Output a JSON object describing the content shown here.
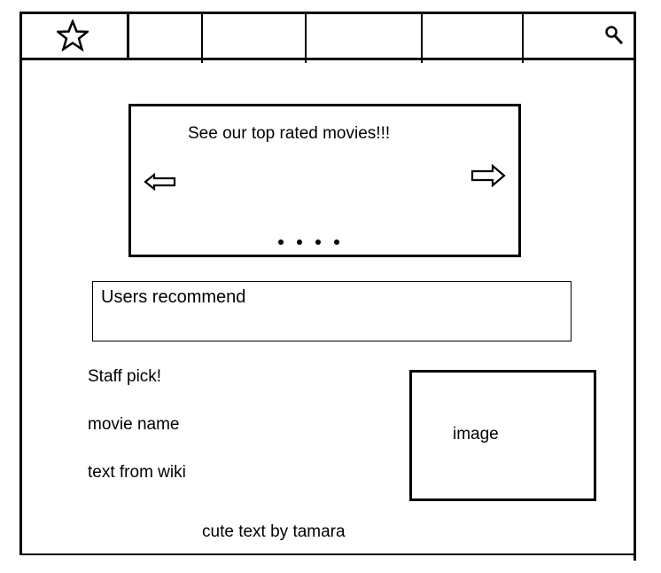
{
  "navbar": {
    "star_icon": "star-icon",
    "search_icon": "search-icon",
    "tabs": [
      "",
      "",
      "",
      ""
    ]
  },
  "carousel": {
    "title": "See our top rated movies!!!",
    "prev_icon": "arrow-left-icon",
    "next_icon": "arrow-right-icon",
    "page_count": 4
  },
  "recommend": {
    "label": "Users recommend"
  },
  "staff": {
    "heading": "Staff pick!",
    "movie_name": "movie name",
    "description": "text from wiki",
    "image_label": "image"
  },
  "footer": {
    "text": "cute text by tamara"
  }
}
